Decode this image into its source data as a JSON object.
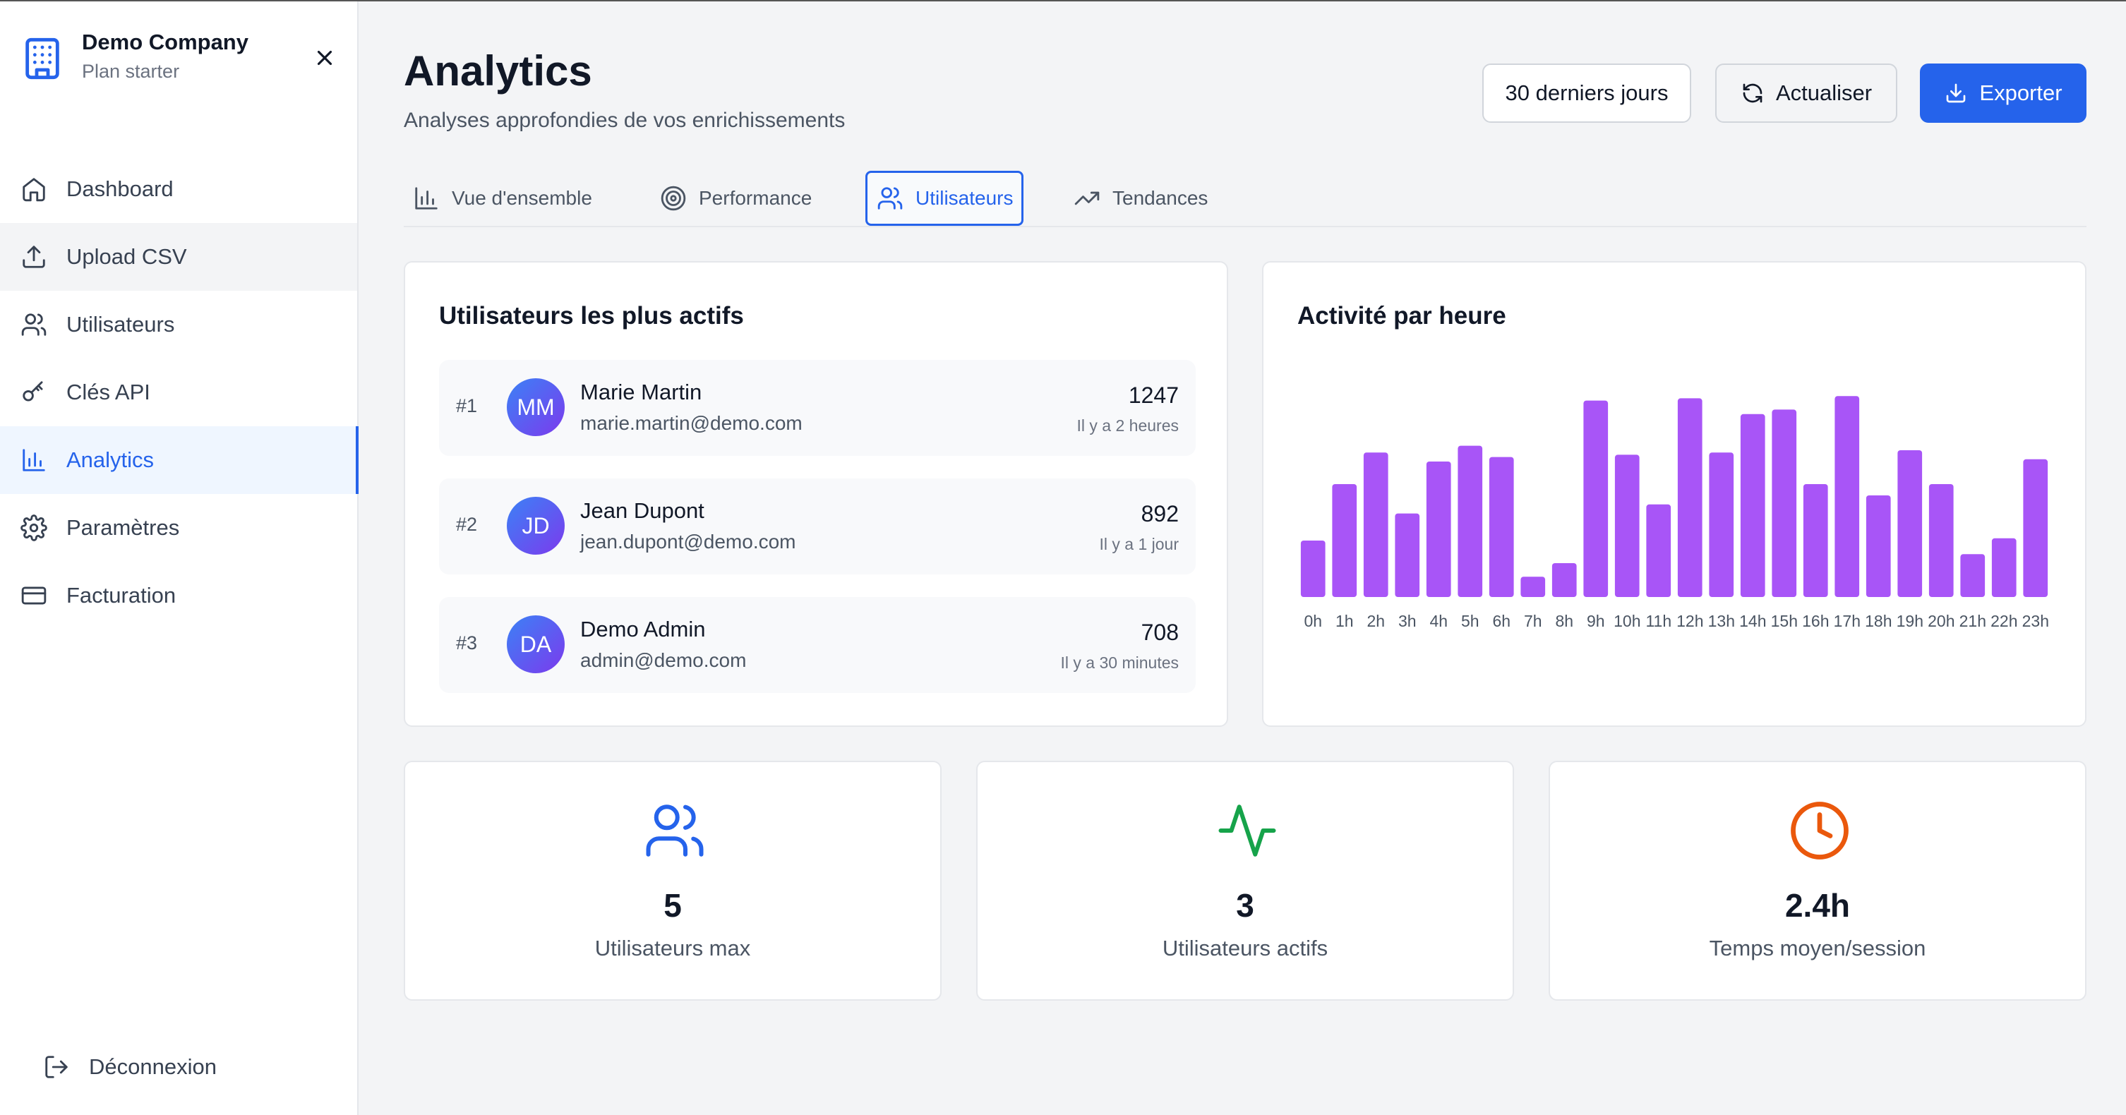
{
  "sidebar": {
    "company_name": "Demo Company",
    "plan": "Plan starter",
    "items": [
      {
        "label": "Dashboard",
        "icon": "home-icon"
      },
      {
        "label": "Upload CSV",
        "icon": "upload-icon"
      },
      {
        "label": "Utilisateurs",
        "icon": "users-icon"
      },
      {
        "label": "Clés API",
        "icon": "key-icon"
      },
      {
        "label": "Analytics",
        "icon": "bar-chart-icon"
      },
      {
        "label": "Paramètres",
        "icon": "gear-icon"
      },
      {
        "label": "Facturation",
        "icon": "credit-card-icon"
      }
    ],
    "active_item": "Analytics",
    "logout_label": "Déconnexion"
  },
  "header": {
    "title": "Analytics",
    "subtitle": "Analyses approfondies de vos enrichissements",
    "range_label": "30 derniers jours",
    "refresh_label": "Actualiser",
    "export_label": "Exporter"
  },
  "tabs": [
    {
      "label": "Vue d'ensemble",
      "icon": "bar-chart-icon"
    },
    {
      "label": "Performance",
      "icon": "target-icon"
    },
    {
      "label": "Utilisateurs",
      "icon": "users-icon"
    },
    {
      "label": "Tendances",
      "icon": "trending-up-icon"
    }
  ],
  "active_tab": "Utilisateurs",
  "top_users": {
    "title": "Utilisateurs les plus actifs",
    "rows": [
      {
        "rank": "#1",
        "initials": "MM",
        "name": "Marie Martin",
        "email": "marie.martin@demo.com",
        "count": "1247",
        "last_seen": "Il y a 2 heures"
      },
      {
        "rank": "#2",
        "initials": "JD",
        "name": "Jean Dupont",
        "email": "jean.dupont@demo.com",
        "count": "892",
        "last_seen": "Il y a 1 jour"
      },
      {
        "rank": "#3",
        "initials": "DA",
        "name": "Demo Admin",
        "email": "admin@demo.com",
        "count": "708",
        "last_seen": "Il y a 30 minutes"
      }
    ]
  },
  "chart_data": {
    "type": "bar",
    "title": "Activité par heure",
    "categories": [
      "0h",
      "1h",
      "2h",
      "3h",
      "4h",
      "5h",
      "6h",
      "7h",
      "8h",
      "9h",
      "10h",
      "11h",
      "12h",
      "13h",
      "14h",
      "15h",
      "16h",
      "17h",
      "18h",
      "19h",
      "20h",
      "21h",
      "22h",
      "23h"
    ],
    "values": [
      25,
      50,
      64,
      37,
      60,
      67,
      62,
      9,
      15,
      87,
      63,
      41,
      88,
      64,
      81,
      83,
      50,
      89,
      45,
      65,
      50,
      19,
      26,
      61
    ],
    "ylim": [
      0,
      100
    ],
    "color": "#a855f7",
    "grid": false
  },
  "stats": [
    {
      "icon": "users-icon",
      "value": "5",
      "label": "Utilisateurs max",
      "color": "#2563eb"
    },
    {
      "icon": "activity-icon",
      "value": "3",
      "label": "Utilisateurs actifs",
      "color": "#16a34a"
    },
    {
      "icon": "clock-icon",
      "value": "2.4h",
      "label": "Temps moyen/session",
      "color": "#ea580c"
    }
  ]
}
